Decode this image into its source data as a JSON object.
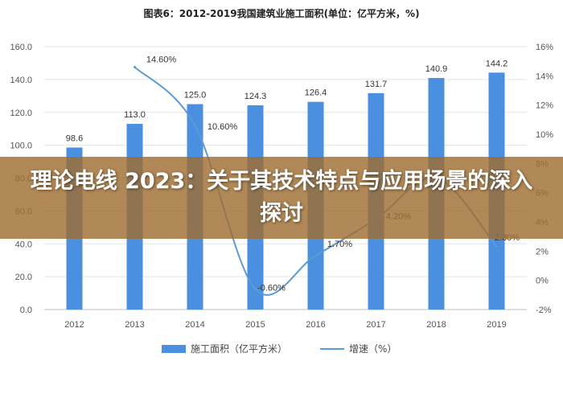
{
  "overlay": {
    "text": "理论电线 2023：关于其技术特点与应用场景的深入探讨"
  },
  "chart_data": {
    "type": "bar",
    "title": "图表6：2012-2019我国建筑业施工面积(单位：亿平方米，%)",
    "categories": [
      "2012",
      "2013",
      "2014",
      "2015",
      "2016",
      "2017",
      "2018",
      "2019"
    ],
    "series": [
      {
        "name": "施工面积（亿平方米）",
        "type": "bar",
        "axis": "left",
        "values": [
          98.6,
          113.0,
          125.0,
          124.3,
          126.4,
          131.7,
          140.9,
          144.2
        ],
        "labels": [
          "98.6",
          "113.0",
          "125.0",
          "124.3",
          "126.4",
          "131.7",
          "140.9",
          "144.2"
        ],
        "color": "#4a8fe0"
      },
      {
        "name": "增速（%）",
        "type": "line",
        "axis": "right",
        "values": [
          null,
          14.6,
          10.6,
          -0.6,
          1.7,
          4.2,
          7.0,
          2.3
        ],
        "labels": [
          "",
          "14.60%",
          "10.60%",
          "-0.60%",
          "1.70%",
          "4.20%",
          "",
          "2.30%"
        ],
        "color": "#5b9bd5"
      }
    ],
    "left_axis": {
      "ylim": [
        0,
        160
      ],
      "ticks": [
        "0.0",
        "20.0",
        "40.0",
        "60.0",
        "80.0",
        "100.0",
        "120.0",
        "140.0",
        "160.0"
      ]
    },
    "right_axis": {
      "ylim": [
        -2,
        16
      ],
      "ticks": [
        "-2%",
        "0%",
        "2%",
        "4%",
        "6%",
        "8%",
        "10%",
        "12%",
        "14%",
        "16%"
      ]
    },
    "grid": true,
    "legend_position": "bottom"
  }
}
